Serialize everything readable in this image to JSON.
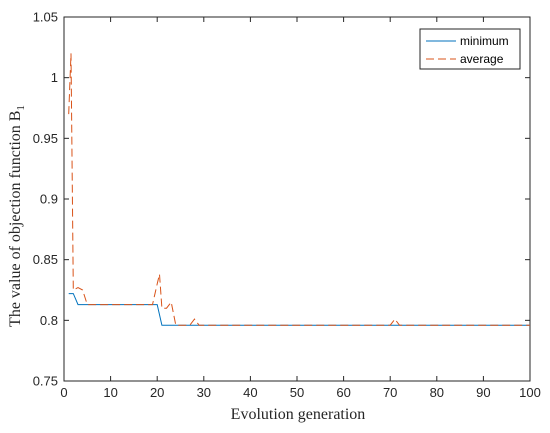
{
  "chart_data": {
    "type": "line",
    "title": "",
    "xlabel": "Evolution generation",
    "ylabel": "The value of objection function B",
    "ylabel_subscript": "1",
    "xlim": [
      0,
      100
    ],
    "ylim": [
      0.75,
      1.05
    ],
    "xticks": [
      0,
      10,
      20,
      30,
      40,
      50,
      60,
      70,
      80,
      90,
      100
    ],
    "yticks": [
      0.75,
      0.8,
      0.85,
      0.9,
      0.95,
      1,
      1.05
    ],
    "ytick_labels": [
      "0.75",
      "0.8",
      "0.85",
      "0.9",
      "0.95",
      "1",
      "1.05"
    ],
    "grid": false,
    "legend_position": "top-right",
    "series": [
      {
        "name": "minimum",
        "color": "#0072BD",
        "style": "solid",
        "x": [
          1,
          2,
          3,
          4,
          5,
          10,
          15,
          19,
          20,
          21,
          22,
          30,
          40,
          50,
          60,
          70,
          80,
          90,
          100
        ],
        "y": [
          0.822,
          0.822,
          0.813,
          0.813,
          0.813,
          0.813,
          0.813,
          0.813,
          0.813,
          0.796,
          0.796,
          0.796,
          0.796,
          0.796,
          0.796,
          0.796,
          0.796,
          0.796,
          0.796
        ]
      },
      {
        "name": "average",
        "color": "#D95319",
        "style": "dashed",
        "x": [
          1,
          1.5,
          2,
          3,
          4,
          5,
          6,
          10,
          15,
          19,
          20,
          20.5,
          21,
          22,
          23,
          24,
          25,
          27,
          28,
          29,
          30,
          40,
          50,
          60,
          70,
          71,
          72,
          80,
          90,
          100
        ],
        "y": [
          0.97,
          1.02,
          0.825,
          0.827,
          0.825,
          0.813,
          0.813,
          0.813,
          0.813,
          0.813,
          0.83,
          0.838,
          0.81,
          0.81,
          0.815,
          0.796,
          0.796,
          0.796,
          0.801,
          0.796,
          0.796,
          0.796,
          0.796,
          0.796,
          0.796,
          0.801,
          0.796,
          0.796,
          0.796,
          0.796
        ]
      }
    ]
  }
}
